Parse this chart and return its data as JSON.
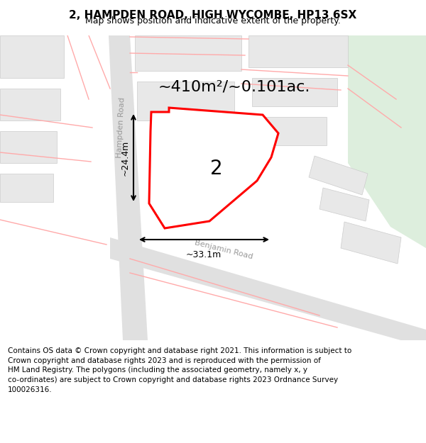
{
  "title": "2, HAMPDEN ROAD, HIGH WYCOMBE, HP13 6SX",
  "subtitle": "Map shows position and indicative extent of the property.",
  "footer_text": "Contains OS data © Crown copyright and database right 2021. This information is subject to\nCrown copyright and database rights 2023 and is reproduced with the permission of\nHM Land Registry. The polygons (including the associated geometry, namely x, y\nco-ordinates) are subject to Crown copyright and database rights 2023 Ordnance Survey\n100026316.",
  "area_label": "~410m²/~0.101ac.",
  "number_label": "2",
  "dim_width": "~33.1m",
  "dim_height": "~24.4m",
  "road_label_1": "Hampden Road",
  "road_label_2": "Benjamin Road",
  "bg_color": "#f0f0f0",
  "property_fill": "#ffffff",
  "property_stroke": "#ff0000",
  "road_fill": "#e0e0e0",
  "building_fill": "#e8e8e8",
  "building_edge": "#cccccc",
  "pink_line": "#ffaaaa",
  "green_color": "#ddeedd",
  "title_fontsize": 11,
  "subtitle_fontsize": 9,
  "footer_fontsize": 7.5,
  "area_fontsize": 16,
  "number_fontsize": 20,
  "dim_fontsize": 9,
  "road_fontsize": 8
}
